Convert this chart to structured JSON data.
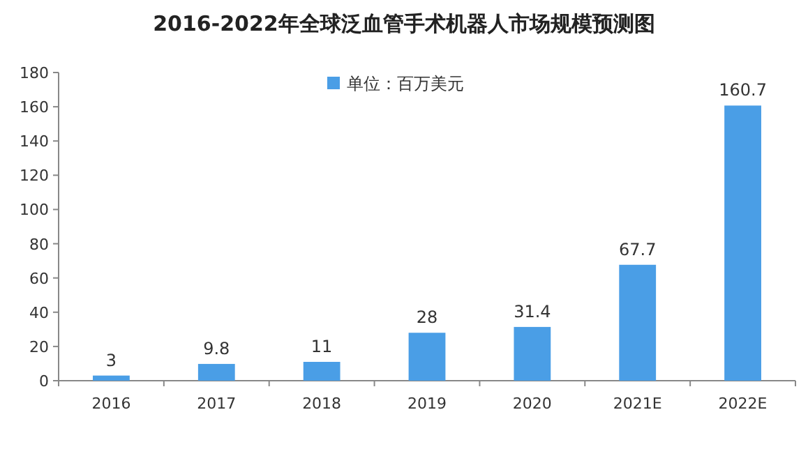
{
  "chart_data": {
    "type": "bar",
    "title": "2016-2022年全球泛血管手术机器人市场规模预测图",
    "categories": [
      "2016",
      "2017",
      "2018",
      "2019",
      "2020",
      "2021E",
      "2022E"
    ],
    "series": [
      {
        "name": "单位：百万美元",
        "color": "#4a9ee6",
        "values": [
          3,
          9.8,
          11,
          28,
          31.4,
          67.7,
          160.7
        ]
      }
    ],
    "ylim": [
      0,
      180
    ],
    "yticks": [
      0,
      20,
      40,
      60,
      80,
      100,
      120,
      140,
      160,
      180
    ],
    "data_labels": true,
    "legend": "top",
    "grid": false
  }
}
